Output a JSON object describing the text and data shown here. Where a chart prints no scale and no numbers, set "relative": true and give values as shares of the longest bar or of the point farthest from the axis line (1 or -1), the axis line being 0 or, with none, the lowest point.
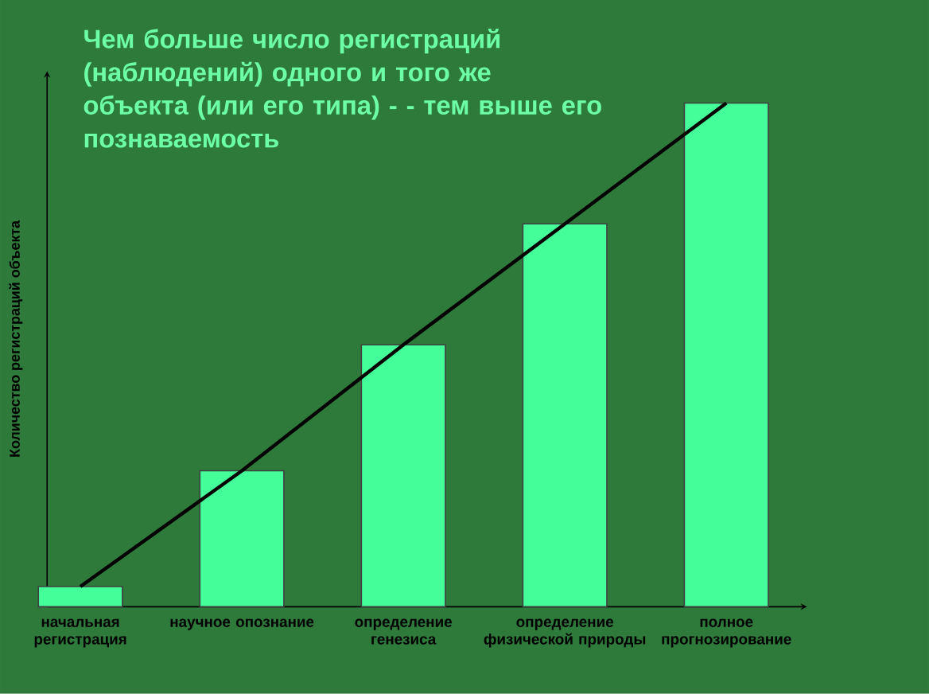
{
  "chart_data": {
    "type": "bar",
    "relative": true,
    "title": "Чем больше число регистраций (наблюдений) одного и того же объекта (или его типа) - - тем выше его познаваемость",
    "ylabel": "Количество регистраций объекта",
    "categories": [
      "начальная регистрация",
      "научное опознание",
      "определение генезиса",
      "определение физической природы",
      "полное прогнозирование"
    ],
    "series": [
      {
        "color": "#44ff99",
        "values": [
          0.04,
          0.27,
          0.52,
          0.76,
          1
        ]
      },
      {
        "type": "line",
        "color": "#000000",
        "values": [
          0.04,
          0.27,
          0.52,
          0.76,
          1
        ]
      }
    ]
  }
}
